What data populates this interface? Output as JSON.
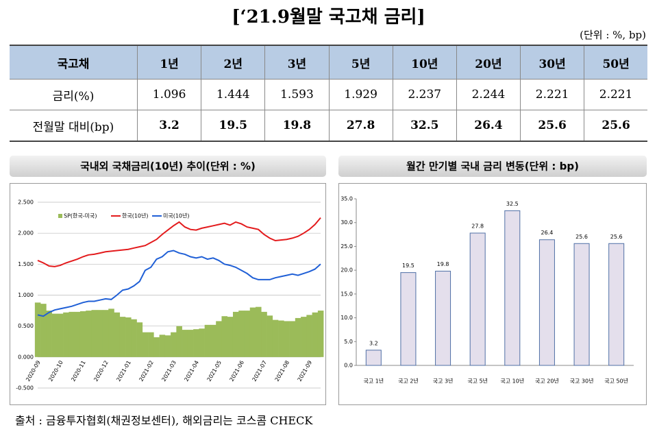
{
  "title": "[‘21.9월말 국고채 금리]",
  "unit": "(단위 : %, bp)",
  "table": {
    "header": [
      "국고채",
      "1년",
      "2년",
      "3년",
      "5년",
      "10년",
      "20년",
      "30년",
      "50년"
    ],
    "rows": [
      [
        "금리(%)",
        "1.096",
        "1.444",
        "1.593",
        "1.929",
        "2.237",
        "2.244",
        "2.221",
        "2.221"
      ],
      [
        "전월말 대비(bp)",
        "3.2",
        "19.5",
        "19.8",
        "27.8",
        "32.5",
        "26.4",
        "25.6",
        "25.6"
      ]
    ]
  },
  "chart_data": [
    {
      "type": "line",
      "title": "국내외 국채금리(10년) 추이(단위 : %)",
      "categories": [
        "2020-09",
        null,
        null,
        null,
        "2020-10",
        null,
        null,
        null,
        "2020-11",
        null,
        null,
        null,
        "2020-12",
        null,
        null,
        null,
        "2021-01",
        null,
        null,
        null,
        "2021-02",
        null,
        null,
        null,
        "2021-03",
        null,
        null,
        null,
        "2021-04",
        null,
        null,
        null,
        "2021-05",
        null,
        null,
        null,
        "2021-06",
        null,
        null,
        null,
        "2021-07",
        null,
        null,
        null,
        "2021-08",
        null,
        null,
        null,
        "2021-09",
        null,
        null
      ],
      "series": [
        {
          "name": "SP(한국-미국)",
          "type": "area",
          "color": "#9bbb59",
          "values": [
            0.88,
            0.86,
            0.75,
            0.7,
            0.7,
            0.72,
            0.73,
            0.73,
            0.74,
            0.75,
            0.76,
            0.76,
            0.76,
            0.78,
            0.72,
            0.65,
            0.64,
            0.61,
            0.56,
            0.4,
            0.4,
            0.32,
            0.36,
            0.35,
            0.4,
            0.5,
            0.44,
            0.44,
            0.45,
            0.46,
            0.52,
            0.52,
            0.58,
            0.66,
            0.65,
            0.73,
            0.75,
            0.75,
            0.8,
            0.81,
            0.73,
            0.67,
            0.6,
            0.59,
            0.58,
            0.58,
            0.63,
            0.65,
            0.68,
            0.72,
            0.75
          ]
        },
        {
          "name": "한국(10년)",
          "type": "line",
          "color": "#e31a1c",
          "values": [
            1.56,
            1.52,
            1.47,
            1.46,
            1.48,
            1.52,
            1.55,
            1.58,
            1.62,
            1.65,
            1.66,
            1.68,
            1.7,
            1.71,
            1.72,
            1.73,
            1.74,
            1.76,
            1.78,
            1.8,
            1.85,
            1.9,
            1.98,
            2.05,
            2.12,
            2.18,
            2.1,
            2.06,
            2.05,
            2.08,
            2.1,
            2.12,
            2.14,
            2.16,
            2.13,
            2.18,
            2.15,
            2.1,
            2.08,
            2.06,
            1.98,
            1.92,
            1.88,
            1.89,
            1.9,
            1.92,
            1.95,
            2.0,
            2.06,
            2.14,
            2.25
          ]
        },
        {
          "name": "미국(10년)",
          "type": "line",
          "color": "#1f5fd6",
          "values": [
            0.68,
            0.66,
            0.72,
            0.76,
            0.78,
            0.8,
            0.82,
            0.85,
            0.88,
            0.9,
            0.9,
            0.92,
            0.94,
            0.93,
            1.0,
            1.08,
            1.1,
            1.15,
            1.22,
            1.4,
            1.45,
            1.58,
            1.62,
            1.7,
            1.72,
            1.68,
            1.66,
            1.62,
            1.6,
            1.62,
            1.58,
            1.6,
            1.56,
            1.5,
            1.48,
            1.45,
            1.4,
            1.35,
            1.28,
            1.25,
            1.25,
            1.25,
            1.28,
            1.3,
            1.32,
            1.34,
            1.32,
            1.35,
            1.38,
            1.42,
            1.5
          ]
        }
      ],
      "ylim": [
        -0.5,
        2.5
      ],
      "yticks": [
        {
          "value": -0.5,
          "label": "-0.500"
        },
        {
          "value": 0,
          "label": "0.000"
        },
        {
          "value": 0.5,
          "label": "0.500"
        },
        {
          "value": 1,
          "label": "1.000"
        },
        {
          "value": 1.5,
          "label": "1.500"
        },
        {
          "value": 2,
          "label": "2.000"
        },
        {
          "value": 2.5,
          "label": "2.500"
        }
      ],
      "grid": true,
      "legend": "top"
    },
    {
      "type": "bar",
      "title": "월간 만기별 국내 금리 변동(단위 : bp)",
      "categories": [
        "국고 1년",
        "국고 2년",
        "국고 3년",
        "국고 5년",
        "국고 10년",
        "국고 20년",
        "국고 30년",
        "국고 50년"
      ],
      "values": [
        3.2,
        19.5,
        19.8,
        27.8,
        32.5,
        26.4,
        25.6,
        25.6
      ],
      "color": "#e4dfec",
      "ylim": [
        0,
        35
      ],
      "yticks": [
        {
          "value": 0,
          "label": "0.0"
        },
        {
          "value": 5,
          "label": "5.0"
        },
        {
          "value": 10,
          "label": "10.0"
        },
        {
          "value": 15,
          "label": "15.0"
        },
        {
          "value": 20,
          "label": "20.0"
        },
        {
          "value": 25,
          "label": "25.0"
        },
        {
          "value": 30,
          "label": "30.0"
        },
        {
          "value": 35,
          "label": "35.0"
        }
      ],
      "grid": false
    }
  ],
  "source": "출처 : 금융투자협회(채권정보센터), 해외금리는 코스콤 CHECK"
}
